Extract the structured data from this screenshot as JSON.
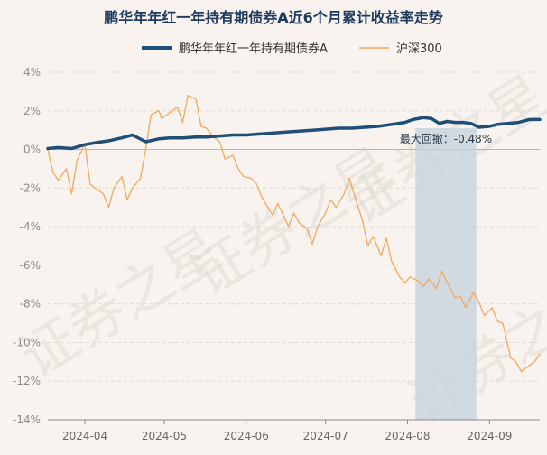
{
  "chart_data": {
    "type": "line",
    "title": "鹏华年年红一年持有期债券A近6个月累计收益率走势",
    "legend_position": "top-center",
    "grid": true,
    "colors": {
      "fund": "#1f4e79",
      "index": "#f2a85e",
      "shade": "#c4d0dc",
      "watermark": "#ddd6d0"
    },
    "watermark_text": "证券之星",
    "x_axis": {
      "type": "date",
      "range": [
        "2024-03-18",
        "2024-09-20"
      ],
      "tick_labels": [
        "2024-04",
        "2024-05",
        "2024-06",
        "2024-07",
        "2024-08",
        "2024-09"
      ],
      "tick_dates": [
        "2024-04-01",
        "2024-05-01",
        "2024-06-01",
        "2024-07-01",
        "2024-08-01",
        "2024-09-01"
      ]
    },
    "y_axis": {
      "unit": "%",
      "ylim": [
        -14,
        4
      ],
      "ticks": [
        4,
        2,
        0,
        -2,
        -4,
        -6,
        -8,
        -10,
        -12,
        -14
      ],
      "tick_labels": [
        "4%",
        "2%",
        "0%",
        "-2%",
        "-4%",
        "-6%",
        "-8%",
        "-10%",
        "-12%",
        "-14%"
      ]
    },
    "series": [
      {
        "name": "鹏华年年红一年持有期债券A",
        "style": "thick",
        "x": [
          "2024-03-18",
          "2024-03-22",
          "2024-03-27",
          "2024-04-01",
          "2024-04-05",
          "2024-04-10",
          "2024-04-15",
          "2024-04-19",
          "2024-04-24",
          "2024-04-29",
          "2024-05-03",
          "2024-05-08",
          "2024-05-13",
          "2024-05-17",
          "2024-05-22",
          "2024-05-27",
          "2024-06-01",
          "2024-06-06",
          "2024-06-11",
          "2024-06-16",
          "2024-06-21",
          "2024-06-26",
          "2024-07-01",
          "2024-07-06",
          "2024-07-11",
          "2024-07-16",
          "2024-07-21",
          "2024-07-26",
          "2024-07-31",
          "2024-08-03",
          "2024-08-07",
          "2024-08-10",
          "2024-08-13",
          "2024-08-16",
          "2024-08-19",
          "2024-08-22",
          "2024-08-25",
          "2024-08-28",
          "2024-09-01",
          "2024-09-04",
          "2024-09-08",
          "2024-09-12",
          "2024-09-16",
          "2024-09-20"
        ],
        "values": [
          0.05,
          0.1,
          0.05,
          0.25,
          0.35,
          0.45,
          0.6,
          0.75,
          0.4,
          0.55,
          0.6,
          0.6,
          0.65,
          0.65,
          0.7,
          0.75,
          0.75,
          0.8,
          0.85,
          0.9,
          0.95,
          1.0,
          1.05,
          1.1,
          1.1,
          1.15,
          1.2,
          1.3,
          1.4,
          1.55,
          1.65,
          1.6,
          1.35,
          1.45,
          1.4,
          1.4,
          1.35,
          1.15,
          1.2,
          1.3,
          1.35,
          1.4,
          1.55,
          1.55
        ]
      },
      {
        "name": "沪深300",
        "style": "thin",
        "x": [
          "2024-03-18",
          "2024-03-20",
          "2024-03-22",
          "2024-03-25",
          "2024-03-27",
          "2024-03-29",
          "2024-04-01",
          "2024-04-03",
          "2024-04-08",
          "2024-04-10",
          "2024-04-12",
          "2024-04-15",
          "2024-04-17",
          "2024-04-19",
          "2024-04-22",
          "2024-04-24",
          "2024-04-26",
          "2024-04-29",
          "2024-04-30",
          "2024-05-06",
          "2024-05-08",
          "2024-05-10",
          "2024-05-13",
          "2024-05-15",
          "2024-05-17",
          "2024-05-20",
          "2024-05-22",
          "2024-05-24",
          "2024-05-27",
          "2024-05-29",
          "2024-05-31",
          "2024-06-03",
          "2024-06-05",
          "2024-06-07",
          "2024-06-11",
          "2024-06-13",
          "2024-06-17",
          "2024-06-19",
          "2024-06-21",
          "2024-06-24",
          "2024-06-26",
          "2024-06-28",
          "2024-07-01",
          "2024-07-03",
          "2024-07-05",
          "2024-07-08",
          "2024-07-10",
          "2024-07-12",
          "2024-07-15",
          "2024-07-17",
          "2024-07-19",
          "2024-07-22",
          "2024-07-24",
          "2024-07-26",
          "2024-07-29",
          "2024-07-31",
          "2024-08-02",
          "2024-08-05",
          "2024-08-07",
          "2024-08-09",
          "2024-08-12",
          "2024-08-14",
          "2024-08-16",
          "2024-08-19",
          "2024-08-21",
          "2024-08-23",
          "2024-08-26",
          "2024-08-28",
          "2024-08-30",
          "2024-09-02",
          "2024-09-04",
          "2024-09-06",
          "2024-09-09",
          "2024-09-11",
          "2024-09-13",
          "2024-09-18",
          "2024-09-20"
        ],
        "values": [
          0.0,
          -1.2,
          -1.6,
          -1.0,
          -2.3,
          -0.6,
          0.3,
          -1.8,
          -2.3,
          -3.0,
          -2.0,
          -1.4,
          -2.6,
          -2.0,
          -1.5,
          0.0,
          1.8,
          2.0,
          1.6,
          2.2,
          1.4,
          2.8,
          2.6,
          1.2,
          1.1,
          0.6,
          0.4,
          -0.5,
          -0.3,
          -1.0,
          -1.4,
          -1.5,
          -1.8,
          -2.5,
          -3.4,
          -2.8,
          -4.0,
          -3.3,
          -3.8,
          -4.1,
          -4.9,
          -4.0,
          -3.3,
          -2.6,
          -3.0,
          -2.3,
          -1.5,
          -2.4,
          -3.7,
          -5.0,
          -4.5,
          -5.5,
          -4.6,
          -5.8,
          -6.6,
          -6.9,
          -6.6,
          -6.8,
          -7.1,
          -6.7,
          -7.2,
          -6.3,
          -6.9,
          -7.7,
          -7.6,
          -8.2,
          -7.4,
          -7.9,
          -8.6,
          -8.2,
          -8.9,
          -9.0,
          -10.8,
          -11.0,
          -11.5,
          -11.0,
          -10.6
        ]
      }
    ],
    "annotations": [
      {
        "type": "shaded_range",
        "x_start": "2024-08-04",
        "x_end": "2024-08-27",
        "label": "最大回撤：-0.48%"
      }
    ]
  }
}
